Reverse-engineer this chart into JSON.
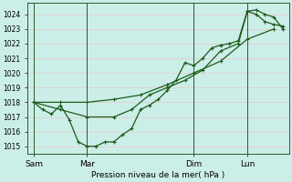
{
  "xlabel": "Pression niveau de la mer( hPa )",
  "bg_color": "#cceee8",
  "grid_color": "#e8c8c8",
  "line_color": "#1a5c1a",
  "ylim": [
    1014.5,
    1024.8
  ],
  "yticks": [
    1015,
    1016,
    1017,
    1018,
    1019,
    1020,
    1021,
    1022,
    1023,
    1024
  ],
  "xtick_labels": [
    "Sam",
    "Mar",
    "Dim",
    "Lun"
  ],
  "xtick_positions": [
    0,
    24,
    72,
    96
  ],
  "vline_positions": [
    0,
    24,
    72,
    96
  ],
  "line1_x": [
    0,
    4,
    8,
    12,
    16,
    20,
    24,
    28,
    32,
    36,
    40,
    44,
    48,
    52,
    56,
    60,
    64,
    68,
    72,
    76,
    80,
    84,
    88,
    92,
    96,
    100,
    104,
    108,
    112
  ],
  "line1_y": [
    1018.0,
    1017.5,
    1017.2,
    1017.8,
    1016.8,
    1015.3,
    1015.0,
    1015.0,
    1015.3,
    1015.3,
    1015.8,
    1016.2,
    1017.5,
    1017.8,
    1018.2,
    1018.8,
    1019.5,
    1020.7,
    1020.5,
    1021.0,
    1021.7,
    1021.9,
    1022.0,
    1022.2,
    1024.2,
    1024.3,
    1024.0,
    1023.8,
    1023.0
  ],
  "line2_x": [
    0,
    12,
    24,
    36,
    48,
    60,
    72,
    84,
    96,
    108
  ],
  "line2_y": [
    1018.0,
    1018.0,
    1018.0,
    1018.2,
    1018.5,
    1019.2,
    1020.0,
    1020.8,
    1022.3,
    1023.0
  ],
  "line3_x": [
    0,
    12,
    24,
    36,
    44,
    52,
    60,
    68,
    76,
    84,
    92,
    96,
    100,
    104,
    108,
    112
  ],
  "line3_y": [
    1018.0,
    1017.5,
    1017.0,
    1017.0,
    1017.5,
    1018.5,
    1019.0,
    1019.5,
    1020.2,
    1021.5,
    1022.0,
    1024.2,
    1024.0,
    1023.5,
    1023.3,
    1023.2
  ],
  "marker": "+",
  "marker_size": 3,
  "line_width": 0.9,
  "xlim": [
    -3,
    115
  ]
}
